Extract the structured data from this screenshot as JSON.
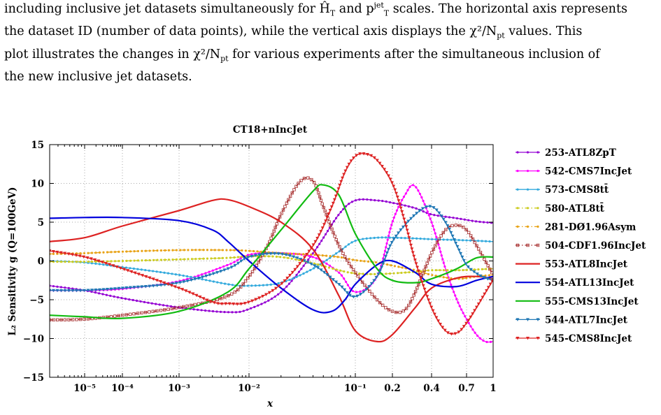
{
  "caption": {
    "line1": "including inclusive jet datasets simultaneously for Ĥ",
    "line1b": "T",
    "line1c": " and p",
    "line1d": "jet",
    "line1e": "T",
    "line1f": " scales. The horizontal axis represents",
    "line2": "the dataset ID (number of data points), while the vertical axis displays the χ²/N",
    "line2b": "pt",
    "line2c": " values. This",
    "line3": "plot illustrates the changes in χ²/N",
    "line3b": "pt",
    "line3c": " for various experiments after the simultaneous inclusion of",
    "line4": "the new inclusive jet datasets."
  },
  "chart_data": {
    "type": "line",
    "title": "CT18+nIncJet",
    "xlabel": "x",
    "ylabel": "L₂ Sensitivity g (Q=100GeV)",
    "xscale": "logit-like (log below 0.1, stretched toward 1)",
    "xlim": [
      3e-06,
      1.0
    ],
    "ylim": [
      -15,
      15
    ],
    "grid": true,
    "legend_position": "right, outside plot",
    "x_ticks": [
      {
        "v": 1e-05,
        "label": "10⁻⁵"
      },
      {
        "v": 0.0001,
        "label": "10⁻⁴"
      },
      {
        "v": 0.001,
        "label": "10⁻³"
      },
      {
        "v": 0.01,
        "label": "10⁻²"
      },
      {
        "v": 0.1,
        "label": "10⁻¹"
      },
      {
        "v": 0.2,
        "label": "0.2"
      },
      {
        "v": 0.4,
        "label": "0.4"
      },
      {
        "v": 0.7,
        "label": "0.7"
      },
      {
        "v": 1.0,
        "label": "1"
      }
    ],
    "y_ticks": [
      {
        "v": 15,
        "label": "15"
      },
      {
        "v": 10,
        "label": "10"
      },
      {
        "v": 5,
        "label": "5"
      },
      {
        "v": 0,
        "label": "0"
      },
      {
        "v": -5,
        "label": "−5"
      },
      {
        "v": -10,
        "label": "−10"
      },
      {
        "v": -15,
        "label": "−15"
      }
    ],
    "series": [
      {
        "name": "253-ATL8ZpT",
        "color": "#9400d3",
        "style": "solid",
        "marker": "dot",
        "x": [
          3e-06,
          1e-05,
          0.0001,
          0.001,
          0.005,
          0.01,
          0.02,
          0.04,
          0.07,
          0.1,
          0.15,
          0.2,
          0.3,
          0.4,
          0.6,
          0.8,
          1.0
        ],
        "y": [
          -3.2,
          -3.8,
          -4.8,
          -6.0,
          -6.6,
          -6.2,
          -4.0,
          1.0,
          6.0,
          7.8,
          7.8,
          7.5,
          6.8,
          6.0,
          5.5,
          5.1,
          4.9
        ]
      },
      {
        "name": "542-CMS7IncJet",
        "color": "#ff00ff",
        "style": "solid",
        "marker": "dot",
        "x": [
          3e-06,
          1e-05,
          0.0001,
          0.001,
          0.005,
          0.01,
          0.02,
          0.04,
          0.07,
          0.1,
          0.15,
          0.2,
          0.25,
          0.3,
          0.4,
          0.5,
          0.6,
          0.7,
          0.8,
          0.9,
          1.0
        ],
        "y": [
          -3.8,
          -3.8,
          -3.6,
          -2.6,
          -0.5,
          0.8,
          1.0,
          0.5,
          -1.5,
          -4.0,
          -2.0,
          5.0,
          8.5,
          9.6,
          5.0,
          -1.0,
          -5.0,
          -7.5,
          -9.5,
          -10.4,
          -10.4
        ]
      },
      {
        "name": "573-CMS8tt̄",
        "color": "#33aadd",
        "style": "solid",
        "marker": "dot",
        "x": [
          3e-06,
          1e-05,
          0.0001,
          0.001,
          0.005,
          0.01,
          0.02,
          0.04,
          0.07,
          0.1,
          0.15,
          0.2,
          0.3,
          0.4,
          0.6,
          0.8,
          1.0
        ],
        "y": [
          0.0,
          -0.2,
          -0.8,
          -1.8,
          -3.0,
          -3.2,
          -2.8,
          -1.0,
          1.2,
          2.6,
          3.0,
          3.0,
          2.9,
          2.8,
          2.7,
          2.6,
          2.5
        ]
      },
      {
        "name": "580-ATL8tt̄",
        "color": "#cccc22",
        "style": "dashdot",
        "marker": "dot",
        "x": [
          3e-06,
          1e-05,
          0.0001,
          0.001,
          0.005,
          0.01,
          0.02,
          0.04,
          0.07,
          0.1,
          0.15,
          0.2,
          0.3,
          0.4,
          0.6,
          0.8,
          1.0
        ],
        "y": [
          -0.1,
          -0.1,
          0.0,
          0.2,
          0.4,
          0.6,
          0.5,
          -0.3,
          -1.2,
          -1.6,
          -1.7,
          -1.6,
          -1.4,
          -1.2,
          -1.2,
          -1.1,
          -1.0
        ]
      },
      {
        "name": "281-DØ1.96Asym",
        "color": "#e8a317",
        "style": "dashdot",
        "marker": "dot",
        "x": [
          3e-06,
          1e-05,
          0.0001,
          0.001,
          0.005,
          0.01,
          0.02,
          0.04,
          0.07,
          0.1,
          0.15,
          0.2,
          0.3,
          0.4,
          0.6,
          0.8,
          1.0
        ],
        "y": [
          0.9,
          1.0,
          1.2,
          1.4,
          1.4,
          1.3,
          1.0,
          0.8,
          0.5,
          0.1,
          -0.2,
          -0.6,
          -1.2,
          -1.8,
          -2.3,
          -2.0,
          -1.8
        ]
      },
      {
        "name": "504-CDF1.96IncJet",
        "color": "#a52a2a",
        "style": "dashdot",
        "marker": "square",
        "x": [
          3e-06,
          1e-05,
          0.0001,
          0.001,
          0.005,
          0.01,
          0.015,
          0.02,
          0.03,
          0.04,
          0.05,
          0.07,
          0.1,
          0.15,
          0.2,
          0.25,
          0.3,
          0.4,
          0.5,
          0.6,
          0.7,
          0.8,
          1.0
        ],
        "y": [
          -7.6,
          -7.5,
          -7.0,
          -6.0,
          -4.5,
          -2.0,
          2.0,
          6.0,
          10.2,
          10.3,
          7.0,
          2.0,
          -1.5,
          -5.0,
          -6.5,
          -6.3,
          -4.0,
          1.0,
          4.0,
          4.6,
          4.0,
          2.0,
          -1.8
        ]
      },
      {
        "name": "553-ATL8IncJet",
        "color": "#dd2222",
        "style": "solid",
        "marker": "none",
        "x": [
          3e-06,
          1e-05,
          0.0001,
          0.001,
          0.003,
          0.005,
          0.01,
          0.02,
          0.04,
          0.07,
          0.1,
          0.15,
          0.2,
          0.3,
          0.4,
          0.6,
          0.8,
          1.0
        ],
        "y": [
          2.5,
          3.0,
          4.5,
          6.5,
          7.8,
          7.9,
          7.0,
          5.0,
          1.5,
          -4.5,
          -9.0,
          -10.4,
          -9.5,
          -6.0,
          -3.5,
          -2.2,
          -2.0,
          -2.3
        ]
      },
      {
        "name": "554-ATL13IncJet",
        "color": "#0000dd",
        "style": "solid",
        "marker": "none",
        "x": [
          3e-06,
          1e-05,
          0.0001,
          0.001,
          0.003,
          0.005,
          0.01,
          0.02,
          0.04,
          0.06,
          0.08,
          0.1,
          0.15,
          0.2,
          0.3,
          0.4,
          0.6,
          0.8,
          1.0
        ],
        "y": [
          5.5,
          5.6,
          5.6,
          5.2,
          4.0,
          2.5,
          0.0,
          -3.5,
          -6.3,
          -6.5,
          -5.0,
          -3.0,
          -0.5,
          0.0,
          -1.5,
          -3.0,
          -3.3,
          -2.5,
          -2.0
        ]
      },
      {
        "name": "555-CMS13IncJet",
        "color": "#11bb11",
        "style": "solid",
        "marker": "none",
        "x": [
          3e-06,
          1e-05,
          0.0001,
          0.001,
          0.005,
          0.01,
          0.02,
          0.04,
          0.05,
          0.07,
          0.1,
          0.15,
          0.2,
          0.3,
          0.4,
          0.6,
          0.8,
          1.0
        ],
        "y": [
          -7.0,
          -7.2,
          -7.4,
          -6.5,
          -4.0,
          -1.0,
          4.0,
          9.0,
          9.8,
          8.5,
          3.5,
          -1.0,
          -2.5,
          -2.8,
          -2.3,
          -1.0,
          0.4,
          0.5
        ]
      },
      {
        "name": "544-ATL7IncJet",
        "color": "#1f77b4",
        "style": "solid",
        "marker": "tri",
        "x": [
          3e-06,
          1e-05,
          0.0001,
          0.001,
          0.005,
          0.01,
          0.02,
          0.04,
          0.07,
          0.1,
          0.15,
          0.2,
          0.3,
          0.4,
          0.5,
          0.6,
          0.7,
          0.8,
          0.9,
          1.0
        ],
        "y": [
          -3.8,
          -3.8,
          -3.5,
          -2.8,
          -1.0,
          0.5,
          0.9,
          -0.5,
          -3.0,
          -4.6,
          -2.0,
          2.5,
          6.0,
          7.0,
          5.0,
          2.0,
          -0.5,
          -1.6,
          -2.2,
          -2.5
        ]
      },
      {
        "name": "545-CMS8IncJet",
        "color": "#dd2222",
        "style": "solid",
        "marker": "tri",
        "x": [
          3e-06,
          1e-05,
          0.0001,
          0.001,
          0.003,
          0.005,
          0.01,
          0.02,
          0.04,
          0.06,
          0.08,
          0.1,
          0.12,
          0.15,
          0.2,
          0.25,
          0.3,
          0.4,
          0.5,
          0.6,
          0.7,
          0.8,
          1.0
        ],
        "y": [
          1.3,
          0.5,
          -1.0,
          -3.5,
          -5.3,
          -5.5,
          -5.3,
          -3.0,
          2.0,
          7.0,
          11.5,
          13.5,
          13.8,
          13.0,
          10.0,
          5.0,
          0.0,
          -6.0,
          -9.0,
          -9.3,
          -8.0,
          -6.0,
          -2.4
        ]
      }
    ]
  }
}
